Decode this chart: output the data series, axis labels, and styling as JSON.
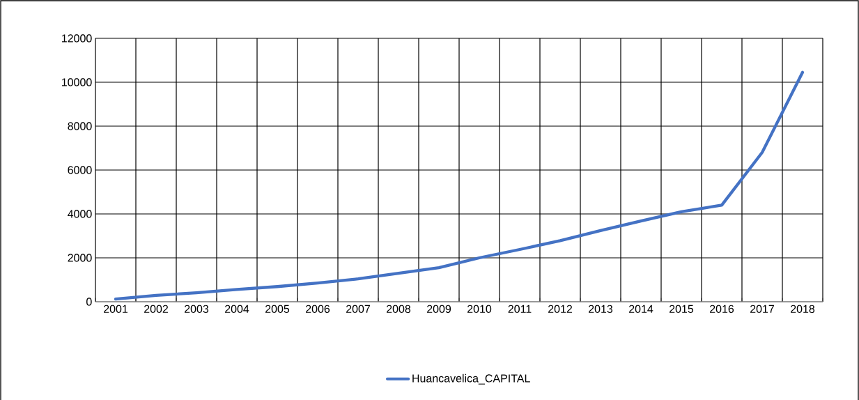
{
  "chart_data": {
    "type": "line",
    "categories": [
      "2001",
      "2002",
      "2003",
      "2004",
      "2005",
      "2006",
      "2007",
      "2008",
      "2009",
      "2010",
      "2011",
      "2012",
      "2013",
      "2014",
      "2015",
      "2016",
      "2017",
      "2018"
    ],
    "series": [
      {
        "name": "Huancavelica_CAPITAL",
        "color": "#4472c4",
        "values": [
          120,
          290,
          410,
          560,
          690,
          850,
          1040,
          1300,
          1550,
          2000,
          2380,
          2780,
          3240,
          3680,
          4100,
          4400,
          6800,
          10450
        ]
      }
    ],
    "ylim": [
      0,
      12000
    ],
    "yticks": [
      0,
      2000,
      4000,
      6000,
      8000,
      10000,
      12000
    ],
    "grid": true,
    "legend": "bottom",
    "marker": "none",
    "line_style": "solid"
  }
}
